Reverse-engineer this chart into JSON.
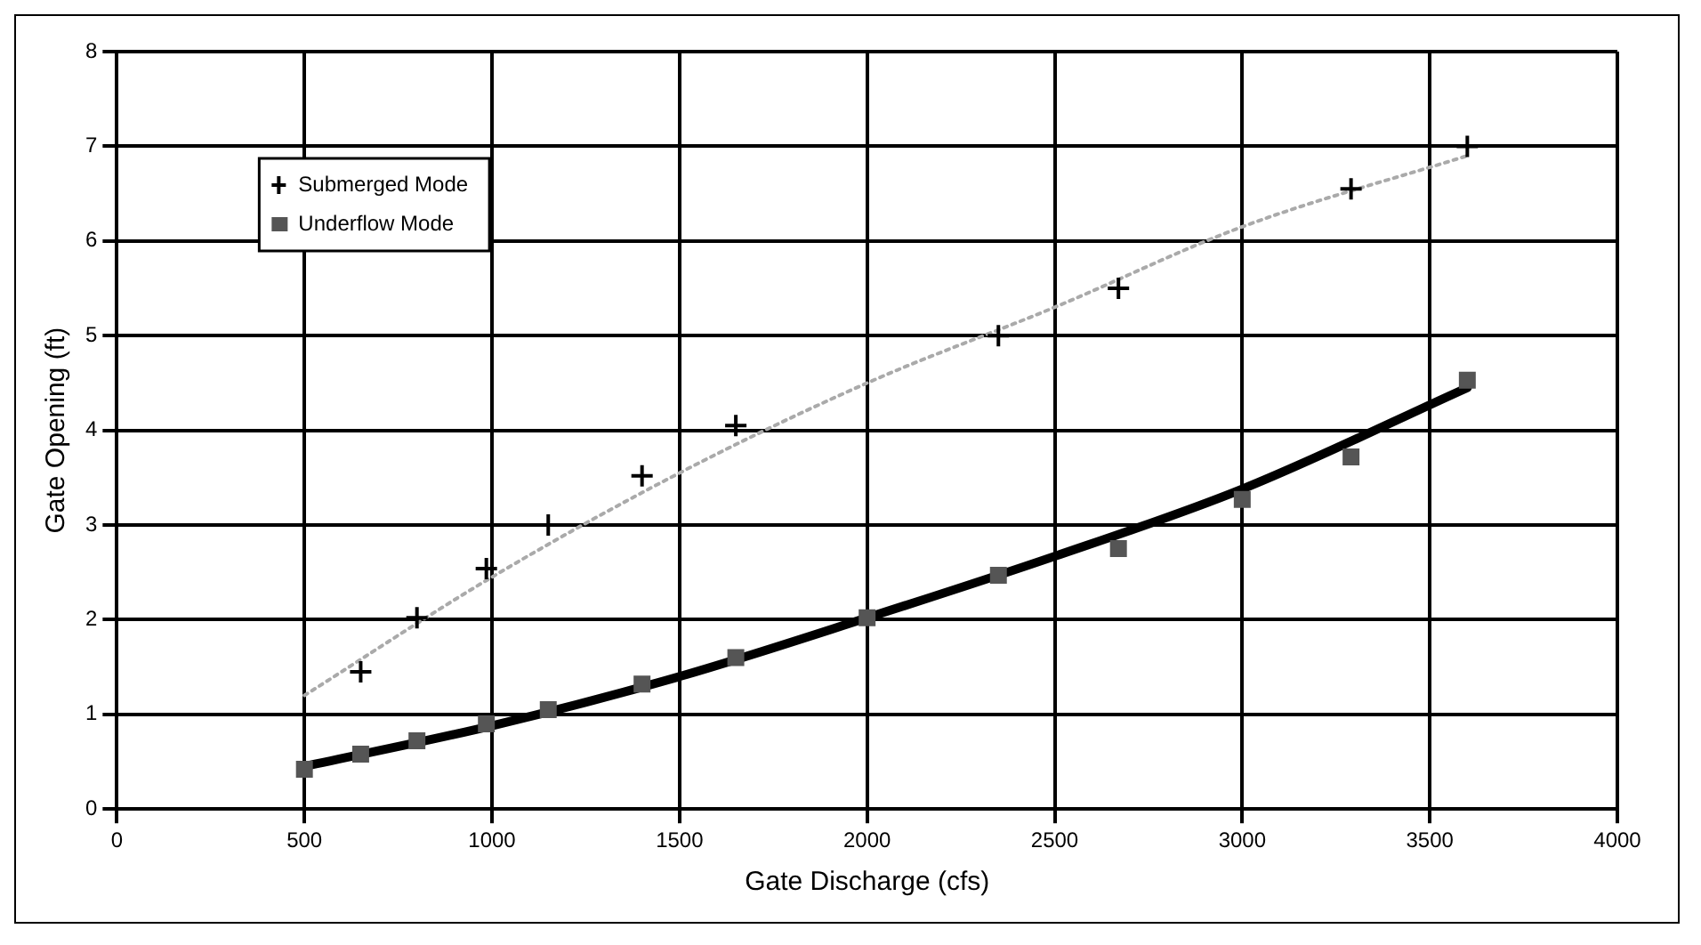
{
  "chart_data": {
    "type": "scatter",
    "xlabel": "Gate Discharge (cfs)",
    "ylabel": "Gate Opening (ft)",
    "xlim": [
      0,
      4000
    ],
    "xticks": [
      0,
      500,
      1000,
      1500,
      2000,
      2500,
      3000,
      3500,
      4000
    ],
    "ylim": [
      0,
      8
    ],
    "yticks": [
      0,
      1,
      2,
      3,
      4,
      5,
      6,
      7,
      8
    ],
    "grid": true,
    "legend": "top left",
    "series": [
      {
        "name": "Submerged Mode",
        "marker": "cross",
        "color": "#000000",
        "x": [
          650,
          800,
          985,
          1150,
          1400,
          1650,
          2350,
          2670,
          3290,
          3600
        ],
        "values": [
          1.45,
          2.02,
          2.54,
          3.0,
          3.52,
          4.05,
          5.0,
          5.5,
          6.55,
          7.0
        ]
      },
      {
        "name": "Underflow Mode",
        "marker": "square",
        "color": "#555555",
        "x": [
          500,
          650,
          800,
          985,
          1150,
          1400,
          1650,
          2000,
          2350,
          2670,
          3000,
          3290,
          3600
        ],
        "values": [
          0.42,
          0.58,
          0.72,
          0.9,
          1.05,
          1.32,
          1.6,
          2.02,
          2.47,
          2.75,
          3.27,
          3.72,
          4.53
        ]
      },
      {
        "type": "line",
        "marker": "none",
        "line_style": "dotted",
        "color": "#aaaaaa",
        "x": [
          500,
          1000,
          1500,
          2000,
          2500,
          3000,
          3600
        ],
        "values": [
          1.2,
          2.45,
          3.55,
          4.5,
          5.3,
          6.15,
          6.9
        ]
      },
      {
        "type": "line",
        "marker": "none",
        "line_style": "solid",
        "color": "#000000",
        "x": [
          500,
          1000,
          1500,
          2000,
          2500,
          3000,
          3600
        ],
        "values": [
          0.45,
          0.88,
          1.4,
          2.02,
          2.67,
          3.38,
          4.45
        ]
      }
    ]
  }
}
